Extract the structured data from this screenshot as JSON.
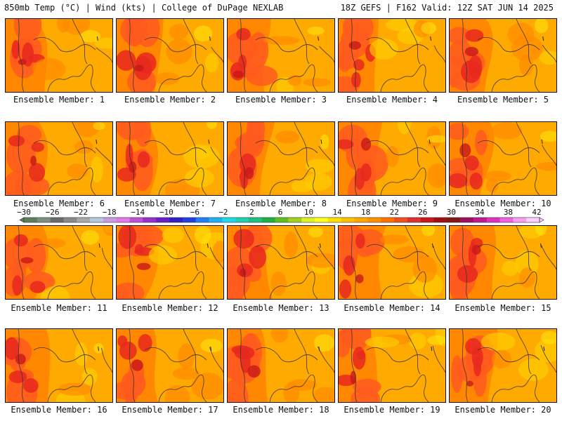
{
  "header": {
    "left": "850mb Temp (°C) | Wind (kts) | College of DuPage NEXLAB",
    "right": "18Z GEFS | F162 Valid: 12Z SAT JUN 14 2025"
  },
  "member_prefix": "Ensemble Member: ",
  "members": [
    1,
    2,
    3,
    4,
    5,
    6,
    7,
    8,
    9,
    10,
    11,
    12,
    13,
    14,
    15,
    16,
    17,
    18,
    19,
    20
  ],
  "colorbar": {
    "labels": [
      "−30",
      "−26",
      "−22",
      "−18",
      "−14",
      "−10",
      "−6",
      "−2",
      "2",
      "6",
      "10",
      "14",
      "18",
      "22",
      "26",
      "30",
      "34",
      "38",
      "42"
    ],
    "colors": [
      "#5c7f5c",
      "#7f8f7f",
      "#6a6a6a",
      "#8a8a8a",
      "#a8a8a8",
      "#b6c8e0",
      "#c89ce0",
      "#e07ae8",
      "#c050d8",
      "#9a30c8",
      "#6a20c8",
      "#3020c0",
      "#2040e0",
      "#2080f0",
      "#20b0f0",
      "#20d8e8",
      "#20d0b0",
      "#20c080",
      "#20b040",
      "#60c020",
      "#a0d020",
      "#e0f020",
      "#ffff20",
      "#ffe000",
      "#ffc000",
      "#ffa800",
      "#ff9000",
      "#ff7000",
      "#f05020",
      "#e03030",
      "#c81818",
      "#a01010",
      "#801818",
      "#a01060",
      "#c01890",
      "#e030c0",
      "#f060e0",
      "#f8a0f0",
      "#ffd0ff"
    ]
  },
  "palette": {
    "base": "#ffaa00",
    "warm": "#ff8800",
    "hot": "#ff5a1e",
    "hotter": "#e8281e",
    "hottest": "#c81818",
    "cool": "#ffd000",
    "coolest": "#ffee10"
  }
}
